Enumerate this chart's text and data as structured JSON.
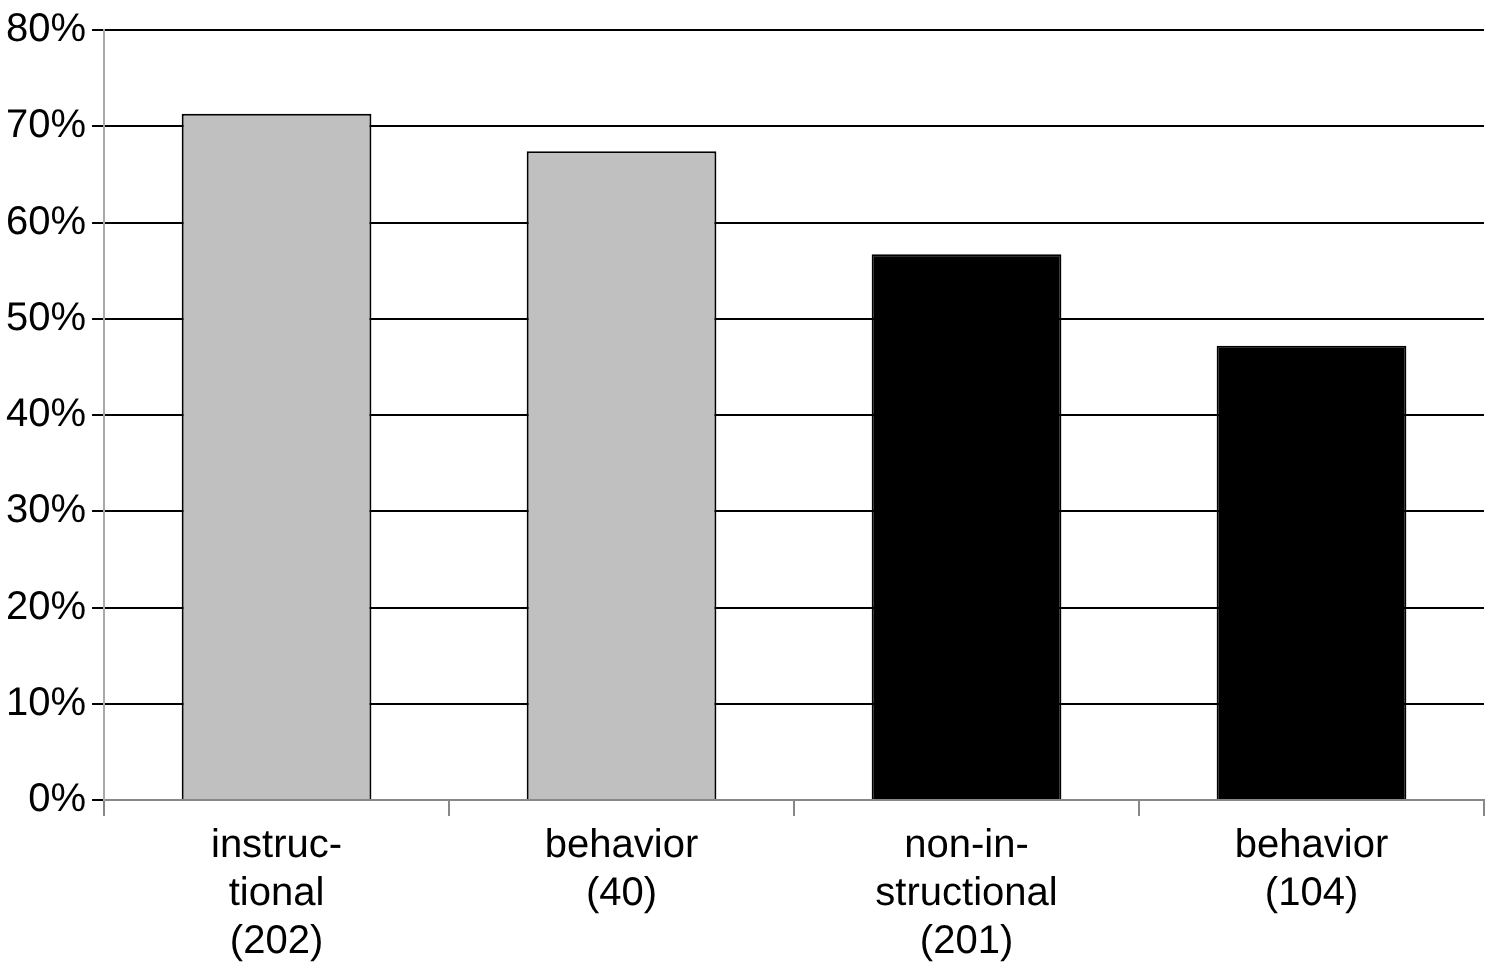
{
  "chart_data": {
    "type": "bar",
    "categories": [
      "instruc-\ntional\n(202)",
      "behavior\n(40)",
      "non-in-\nstructional\n(201)",
      "behavior\n(104)"
    ],
    "values": [
      71.3,
      67.4,
      56.7,
      47.2
    ],
    "colors": [
      "#c0c0c0",
      "#c0c0c0",
      "#000000",
      "#000000"
    ],
    "ylim": [
      0,
      80
    ],
    "yticks": [
      {
        "value": 0,
        "label": "0%"
      },
      {
        "value": 10,
        "label": "10%"
      },
      {
        "value": 20,
        "label": "20%"
      },
      {
        "value": 30,
        "label": "30%"
      },
      {
        "value": 40,
        "label": "40%"
      },
      {
        "value": 50,
        "label": "50%"
      },
      {
        "value": 60,
        "label": "60%"
      },
      {
        "value": 70,
        "label": "70%"
      },
      {
        "value": 80,
        "label": "80%"
      }
    ],
    "grid": "y",
    "legend": false
  }
}
